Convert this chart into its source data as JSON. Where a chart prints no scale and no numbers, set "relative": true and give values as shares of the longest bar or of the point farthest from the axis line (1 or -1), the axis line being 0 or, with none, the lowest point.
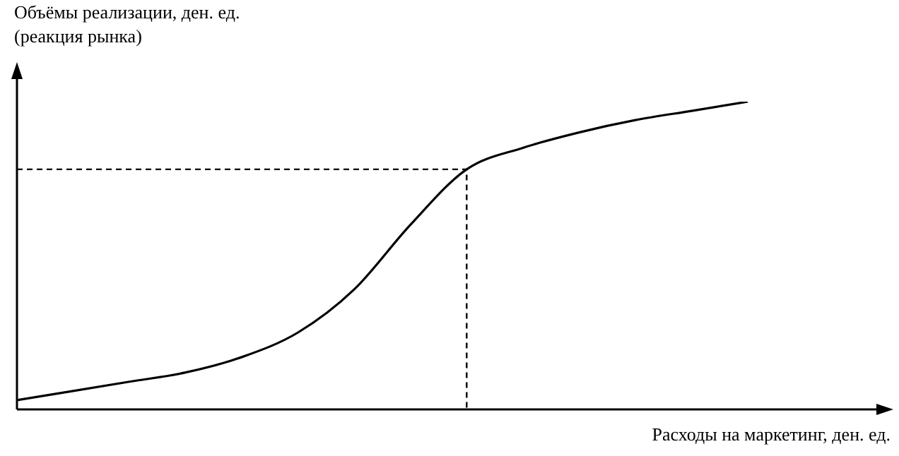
{
  "chart_data": {
    "type": "line",
    "relative": true,
    "ylabel": "Объёмы реализации, ден. ед.\n(реакция рынка)",
    "xlabel": "Расходы на маркетинг, ден. ед.",
    "categories": [
      null,
      null,
      null,
      null,
      null,
      null,
      null,
      null,
      null,
      null,
      null,
      null,
      null,
      null
    ],
    "series": [
      {
        "color": "#000000",
        "values": [
          0.03,
          0.06,
          0.09,
          0.12,
          0.17,
          0.25,
          0.39,
          0.6,
          0.78,
          0.85,
          0.9,
          0.94,
          0.97,
          1
        ]
      }
    ],
    "ref_lines": [
      {
        "axis": "y",
        "value": 0.78,
        "line_style": "dashed",
        "color": "#000000"
      }
    ],
    "legend": false,
    "marker": "none",
    "line_style": "solid"
  }
}
